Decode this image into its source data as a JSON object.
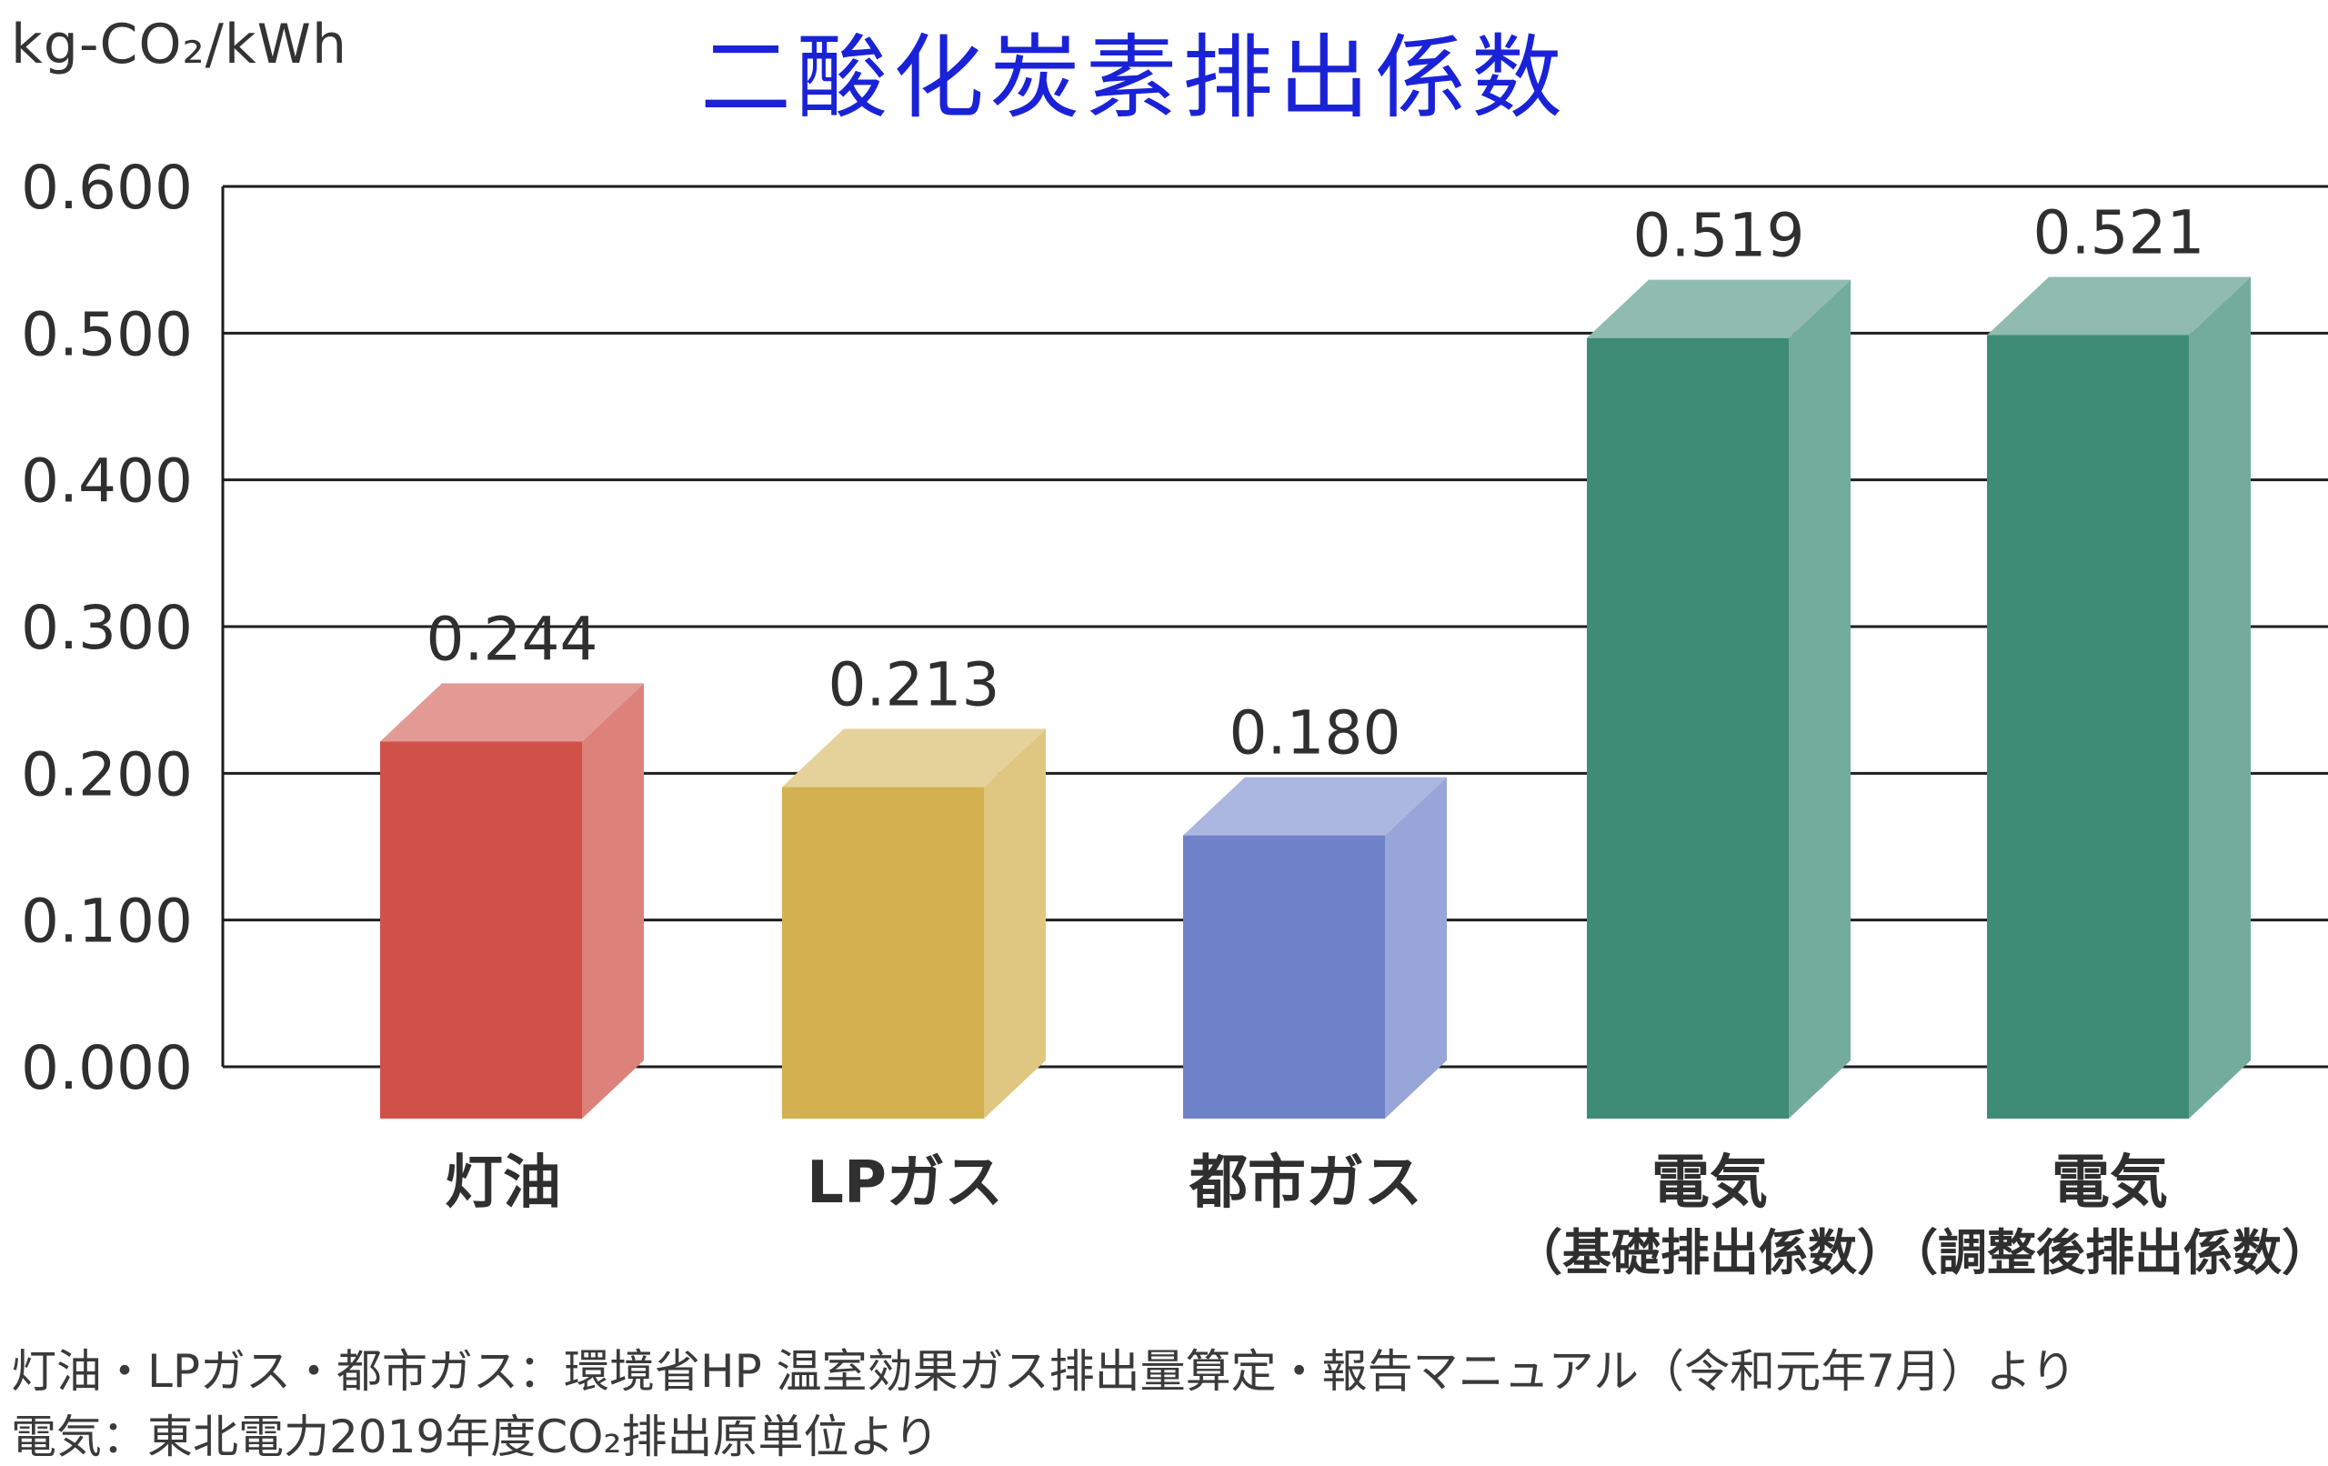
{
  "chart_data": {
    "type": "bar",
    "title": "二酸化炭素排出係数",
    "ylabel": "kg-CO₂/kWh",
    "xlabel": "",
    "ylim": [
      0,
      0.6
    ],
    "yticks": [
      "0.000",
      "0.100",
      "0.200",
      "0.300",
      "0.400",
      "0.500",
      "0.600"
    ],
    "grid": true,
    "categories": [
      {
        "label": "灯油",
        "sub": ""
      },
      {
        "label": "LPガス",
        "sub": ""
      },
      {
        "label": "都市ガス",
        "sub": ""
      },
      {
        "label": "電気",
        "sub": "（基礎排出係数）"
      },
      {
        "label": "電気",
        "sub": "（調整後排出係数）"
      }
    ],
    "values": [
      0.244,
      0.213,
      0.18,
      0.519,
      0.521
    ],
    "value_labels": [
      "0.244",
      "0.213",
      "0.180",
      "0.519",
      "0.521"
    ],
    "colors": [
      "#cf5148",
      "#d3b150",
      "#6f82c9",
      "#3e8c74",
      "#3e8c74"
    ]
  },
  "notes": {
    "line1": "灯油・LPガス・都市ガス：環境省HP 温室効果ガス排出量算定・報告マニュアル（令和元年7月）より",
    "line2": "電気：東北電力2019年度CO₂排出原単位より"
  }
}
